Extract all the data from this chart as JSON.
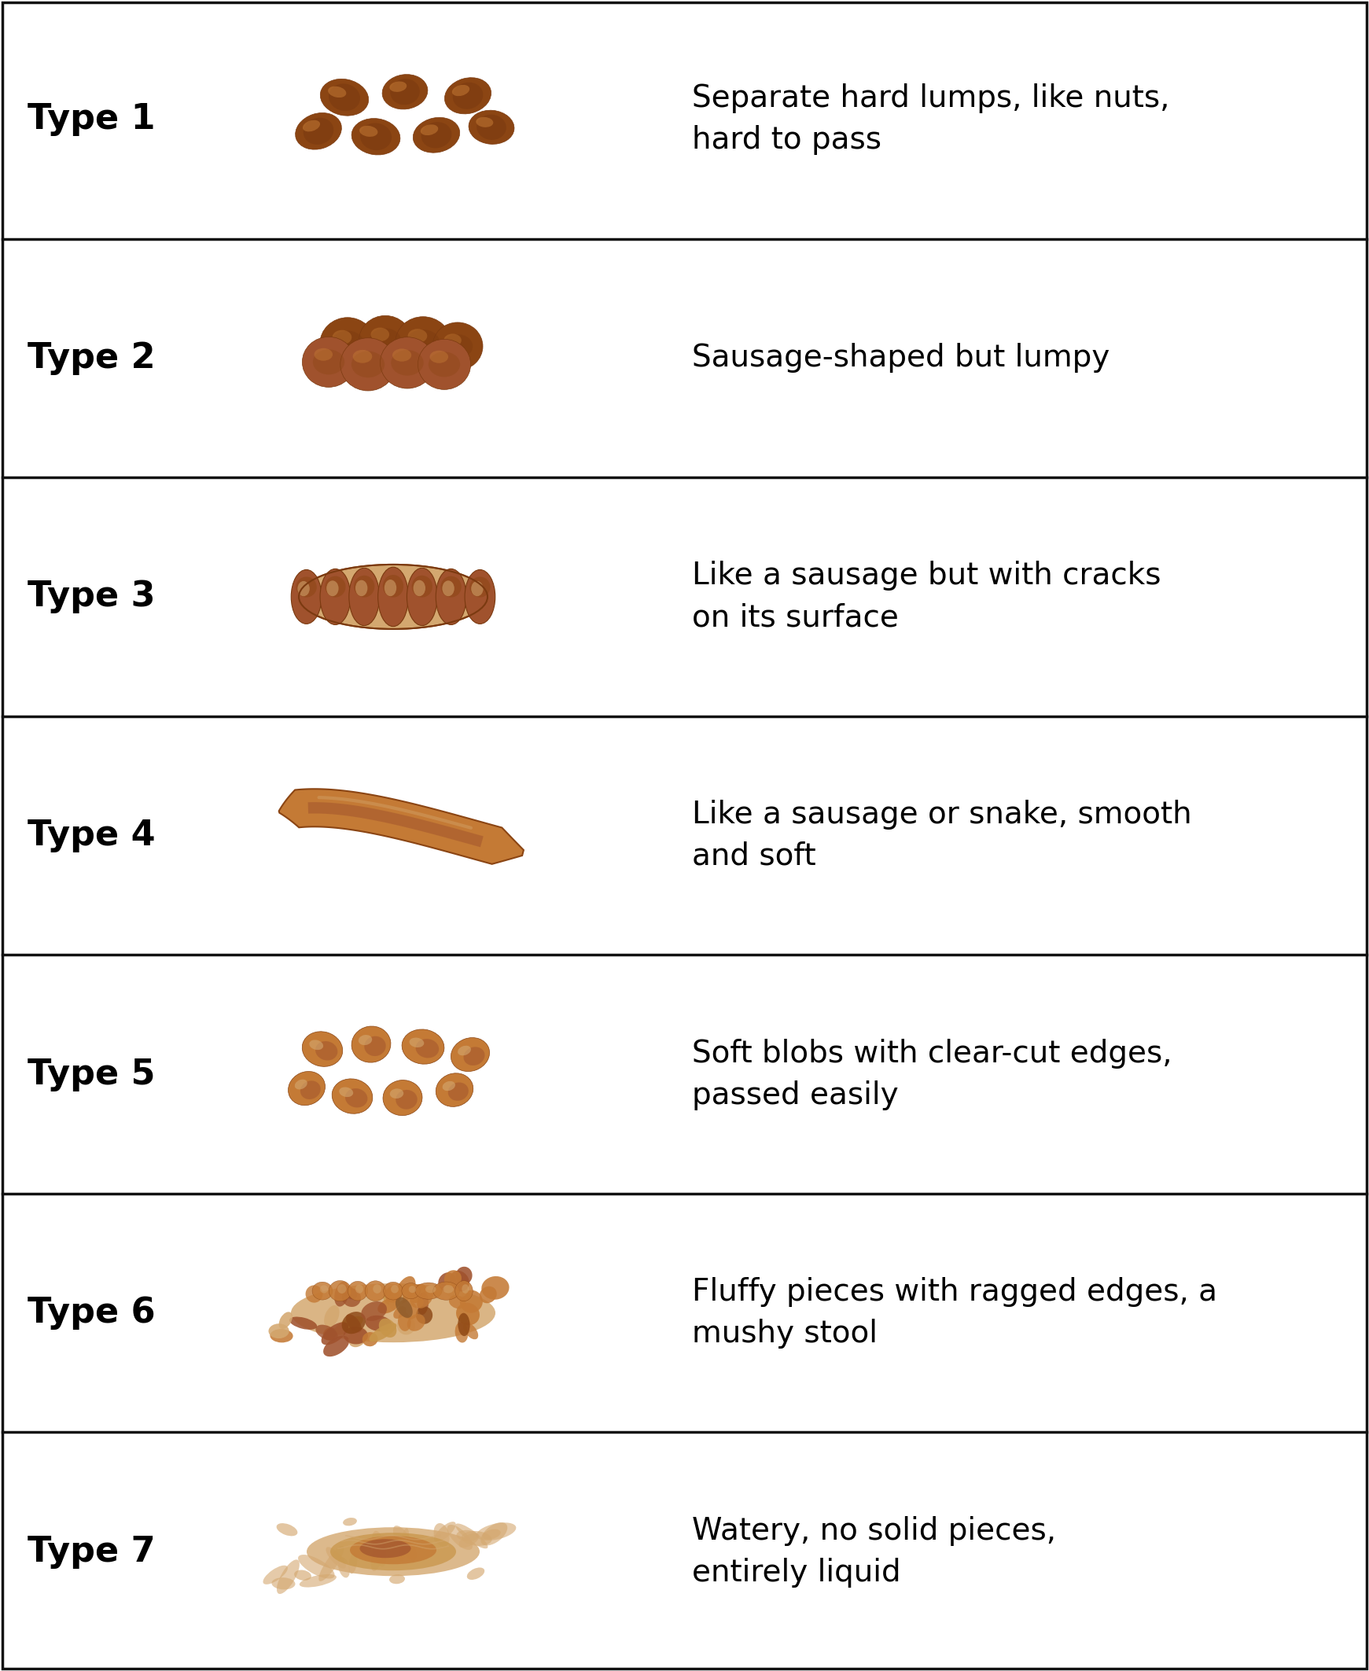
{
  "types": [
    {
      "label": "Type 1",
      "description": "Separate hard lumps, like nuts,\nhard to pass"
    },
    {
      "label": "Type 2",
      "description": "Sausage-shaped but lumpy"
    },
    {
      "label": "Type 3",
      "description": "Like a sausage but with cracks\non its surface"
    },
    {
      "label": "Type 4",
      "description": "Like a sausage or snake, smooth\nand soft"
    },
    {
      "label": "Type 5",
      "description": "Soft blobs with clear-cut edges,\npassed easily"
    },
    {
      "label": "Type 6",
      "description": "Fluffy pieces with ragged edges, a\nmushy stool"
    },
    {
      "label": "Type 7",
      "description": "Watery, no solid pieces,\nentirely liquid"
    }
  ],
  "background_color": "#ffffff",
  "border_color": "#111111",
  "text_color": "#000000",
  "label_fontsize": 32,
  "desc_fontsize": 28,
  "brown_dark": "#7B3A10",
  "brown_mid": "#8B4513",
  "brown_sausage": "#A0522D",
  "brown_light": "#C47A35",
  "brown_lighter": "#C8964A",
  "brown_tan": "#D4A870",
  "n_rows": 7
}
